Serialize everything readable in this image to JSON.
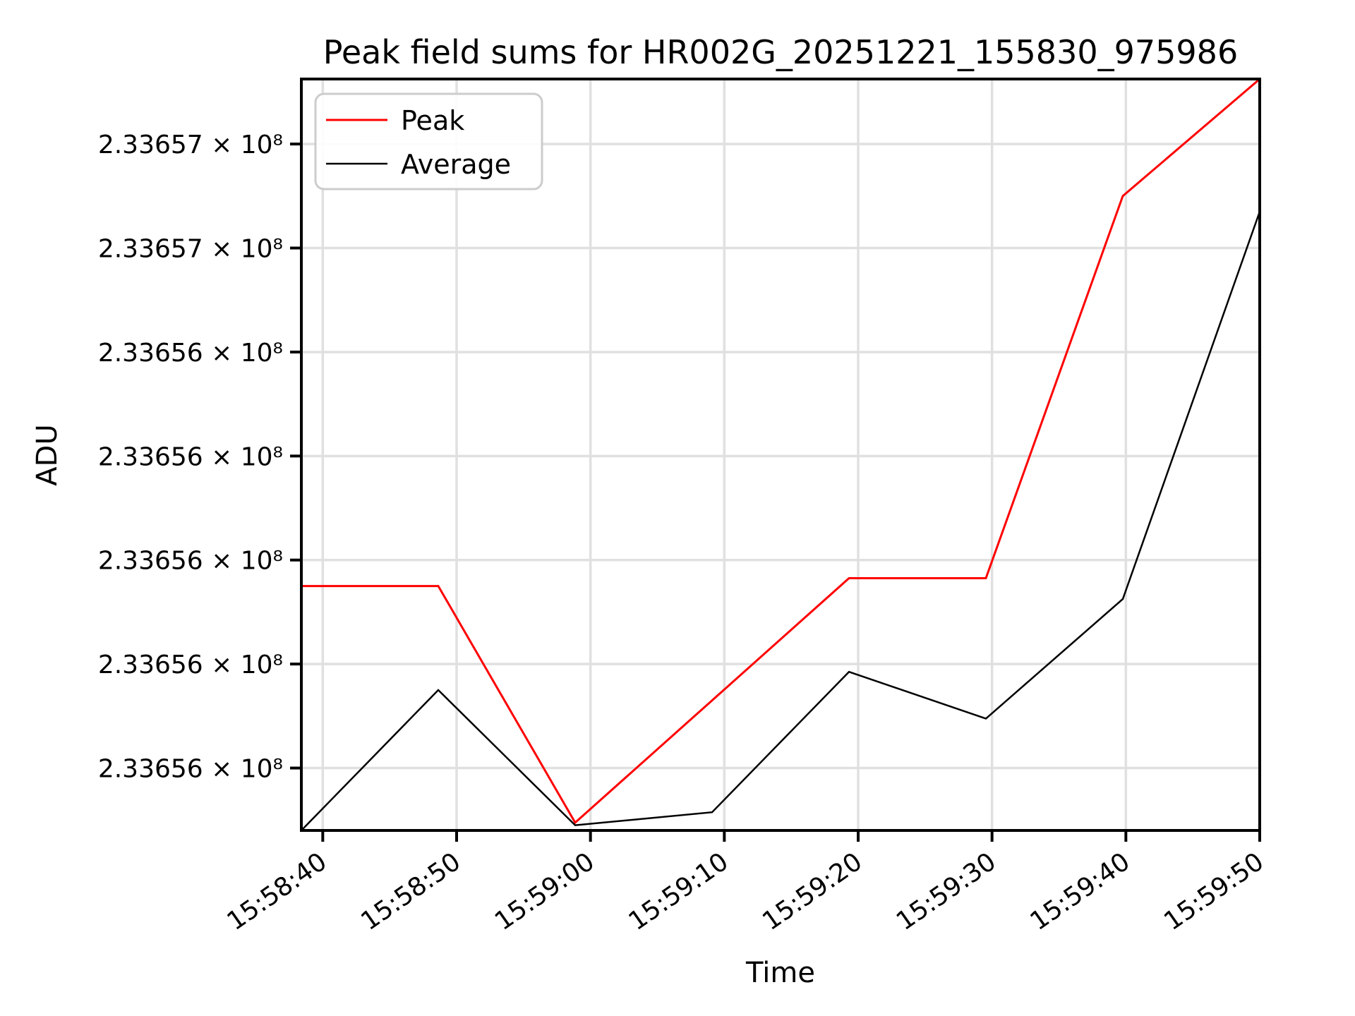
{
  "title": "Peak field sums for HR002G_20251221_155830_975986",
  "axes": {
    "x_label": "Time",
    "y_label": "ADU"
  },
  "legend": {
    "entries": [
      "Peak",
      "Average"
    ],
    "position": "upper left"
  },
  "colors": {
    "background": "#ffffff",
    "grid": "#e0e0e0",
    "spine": "#000000",
    "legend_border": "#cccccc",
    "peak_line": "#ff0000",
    "average_line": "#000000"
  },
  "chart_data": {
    "type": "line",
    "title": "Peak field sums for HR002G_20251221_155830_975986",
    "xlabel": "Time",
    "ylabel": "ADU",
    "grid": true,
    "legend_position": "upper left",
    "x_range": [
      "15:58:38.4",
      "15:59:50"
    ],
    "x_ticks": [
      "15:58:40",
      "15:58:50",
      "15:59:00",
      "15:59:10",
      "15:59:20",
      "15:59:30",
      "15:59:40",
      "15:59:50"
    ],
    "y_ticks": [
      233656800,
      233656600,
      233656400,
      233656200,
      233656000,
      233655800,
      233655600
    ],
    "y_tick_labels": [
      "2.33657 × 10⁸",
      "2.33657 × 10⁸",
      "2.33656 × 10⁸",
      "2.33656 × 10⁸",
      "2.33656 × 10⁸",
      "2.33656 × 10⁸",
      "2.33656 × 10⁸"
    ],
    "ylim": [
      233655480,
      233656925
    ],
    "x": [
      "15:58:38",
      "15:58:48",
      "15:58:58",
      "15:59:09",
      "15:59:19",
      "15:59:29",
      "15:59:40",
      "15:59:50"
    ],
    "series": [
      {
        "name": "Peak",
        "color": "#ff0000",
        "values": [
          233655950,
          233655950,
          233655495,
          233655730,
          233655965,
          233655965,
          233656700,
          233656925
        ]
      },
      {
        "name": "Average",
        "color": "#000000",
        "values": [
          233655480,
          233655750,
          233655490,
          233655515,
          233655785,
          233655695,
          233655925,
          233656670
        ]
      }
    ]
  }
}
